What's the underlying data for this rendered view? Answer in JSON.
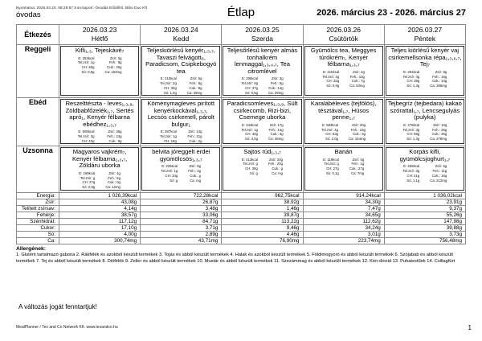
{
  "meta": {
    "print_line": "Nyomtatva: 2026.03.20. 08:29:57 Korcsoport: Óvodás Előállító: Bibo Duo Kft",
    "group": "óvodas",
    "title": "Étlap",
    "date_range": "2026. március 23 - 2026. március 27",
    "disclaimer": "A változás jogát fenntartjuk!",
    "footer": "MealPlanner / Tex and Co Network Kft. www.texandco.hu",
    "page_number": "1"
  },
  "menu": {
    "header_label": "Étkezés",
    "days": [
      {
        "date": "2026.03.23",
        "weekday": "Hétfő"
      },
      {
        "date": "2026.03.24",
        "weekday": "Kedd"
      },
      {
        "date": "2026.03.25",
        "weekday": "Szerda"
      },
      {
        "date": "2026.03.26",
        "weekday": "Csütörtök"
      },
      {
        "date": "2026.03.27",
        "weekday": "Péntek"
      }
    ],
    "meal_rows": [
      {
        "label": "Reggeli",
        "cells": [
          {
            "dish": "Kifli₁,₃, Tejeskávé₇",
            "nut_left": [
              "E: 253kcal",
              "Tel.zsír: 1g",
              "CH: 48g",
              "Só: 0,8g"
            ],
            "nut_right": [
              "Zsír: 3g",
              "Feh.: 9g",
              "Cuk.: 20g",
              "Ca: 163mg"
            ]
          },
          {
            "dish": "Teljeskiörlésű kenyér₁,₃,₇, Tavaszi felvágott₆, Paradicsom, Csipkebogyó tea",
            "nut_left": [
              "E: 210kcal",
              "Tel.zsír: 2g",
              "CH: 33g",
              "Só: 1,0g"
            ],
            "nut_right": [
              "Zsír: 5g",
              "Feh.: 8g",
              "Cuk.: 9g",
              "Ca: 28mg"
            ]
          },
          {
            "dish": "Teljesőrlésű kenyér almás tonhalkrém lenmaggal₁,₃,₄,₇, Tea citromlével",
            "nut_left": [
              "E: 206kcal",
              "Tel.zsír: 0g",
              "CH: 37g",
              "Só: 0,5g"
            ],
            "nut_right": [
              "Zsír: 3g",
              "Feh.: 6g",
              "Cuk.: 14g",
              "Ca: 29mg"
            ]
          },
          {
            "dish": "Gyümölcs tea, Meggyes túrókrém₇, Kenyér félbarna₁,₃,₇",
            "nut_left": [
              "E: 215kcal",
              "Tel.zsír: 2g",
              "CH: 32g",
              "Só: 0,9g"
            ],
            "nut_right": [
              "Zsír: 4g",
              "Feh.: 10g",
              "Cuk.: 7g",
              "Ca: 53mg"
            ]
          },
          {
            "dish": "Teljes kiörlésű kenyér vaj csirkemellsonka répa₁,₃,₆,₇, Tej₇",
            "nut_left": [
              "E: 294kcal",
              "Tel.zsír: 4g",
              "CH: 39g",
              "Só: 1,3g"
            ],
            "nut_right": [
              "Zsír: 8g",
              "Feh.: 16g",
              "Cuk.: 14g",
              "Ca: 266mg"
            ]
          }
        ]
      },
      {
        "label": "Ebéd",
        "cells": [
          {
            "dish": "Reszelttészta - leves₁,₃,₉, Zöldbabfőzelék₁,₇, Sertés apró₁, Kenyér félbarna ebédhez₁,₃,₇",
            "nut_left": [
              "E: 605kcal",
              "Tel.zsír: 3g",
              "CH: 43g",
              "Só: 2,3g"
            ],
            "nut_right": [
              "Zsír: 36g",
              "Feh.: 24g",
              "Cuk.: 9g",
              "Ca: 107mg"
            ]
          },
          {
            "dish": "Köménymagleves pirított kenyérkockával₁,₃,₇, Lecsós csirkemell, párolt bulgur₁",
            "nut_left": [
              "E: 287kcal",
              "Tel.zsír: 1g",
              "CH: 18g",
              "Só: 1,8g"
            ],
            "nut_right": [
              "Zsír: 14g",
              "Feh.: 21g",
              "Cuk.: 2g",
              "Ca: 16mg"
            ]
          },
          {
            "dish": "Paradicsomleves₁,₃,₉, Sült csirkecomb, Rizi-bizi, Csemege uborka",
            "nut_left": [
              "E: 344kcal",
              "Tel.zsír: 1g",
              "CH: 40g",
              "Só: 4,0g"
            ],
            "nut_right": [
              "Zsír: 17g",
              "Feh.: 14g",
              "Cuk.: 3g",
              "Ca: 48mg"
            ]
          },
          {
            "dish": "Karalábéleves (tejfölös), tésztával₁,₇, Húsos penne₁,₇",
            "nut_left": [
              "E: 583kcal",
              "Tel.zsír: 4g",
              "CH: 53g",
              "Só: 2,0g"
            ],
            "nut_right": [
              "Zsír: 20g",
              "Feh.: 23g",
              "Cuk.: 3g",
              "Ca: 164mg"
            ]
          },
          {
            "dish": "Tejbegríz (tejbedara) kakaó szórattal₁,₇, Lencsegulyás (pulyka)",
            "nut_left": [
              "E: 476kcal",
              "Tel.zsír: 3g",
              "CH: 69g",
              "Só: 1,3g"
            ],
            "nut_right": [
              "Zsír: 10g",
              "Feh.: 26g",
              "Cuk.: 26g",
              "Ca: 278mg"
            ]
          }
        ]
      },
      {
        "label": "Uzsonna",
        "cells": [
          {
            "dish": "Magyaros vajkrém₇, Kenyér félbarna₁,₃,₇, Zöldáru uborka",
            "nut_left": [
              "E: 169kcal",
              "Tel.zsír: g",
              "CH: 27g",
              "Só: 0,9g"
            ],
            "nut_right": [
              "Zsír: 4g",
              "Feh.: 5g",
              "Cuk.: 0g",
              "Ca: 12mg"
            ]
          },
          {
            "dish": "belvita jóreggelt erdei gyümölcsös₁,₃,₇",
            "nut_left": [
              "E: 225kcal",
              "Tel.zsír: 1g",
              "CH: 34g",
              "Só: g"
            ],
            "nut_right": [
              "Zsír: 8g",
              "Feh.: 4g",
              "Cuk.: g",
              "Ca: mg"
            ]
          },
          {
            "dish": "Sajtos rúd₁,₃,₇",
            "nut_left": [
              "E: 413kcal",
              "Tel.zsír: g",
              "CH: 36g",
              "Só: g"
            ],
            "nut_right": [
              "Zsír: 20g",
              "Feh.: 20g",
              "Cuk.: g",
              "Ca: mg"
            ]
          },
          {
            "dish": "Banán",
            "nut_left": [
              "E: 119kcal",
              "Tel.zsír: g",
              "CH: 27g",
              "Só: 0,1g"
            ],
            "nut_right": [
              "Zsír: 0g",
              "Feh.: 1g",
              "Cuk.: 27g",
              "Ca: 7mg"
            ]
          },
          {
            "dish": "Korpás kifli, gyümölcsjoghurt₁,₇",
            "nut_left": [
              "E: 266kcal",
              "Tel.zsír: 3g",
              "CH: 41g",
              "Só: 1,1g"
            ],
            "nut_right": [
              "Zsír: 6g",
              "Feh.: 11g",
              "Cuk.: 16g",
              "Ca: 212mg"
            ]
          }
        ]
      }
    ],
    "summary_rows": [
      {
        "label": "Energia:",
        "values": [
          "1 026,39kcal",
          "722,28kcal",
          "962,75kcal",
          "914,24kcal",
          "1 036,02kcal"
        ]
      },
      {
        "label": "Zsír:",
        "values": [
          "43,08g",
          "26,87g",
          "38,92g",
          "34,30g",
          "23,91g"
        ]
      },
      {
        "label": "Telített zsírsav:",
        "values": [
          "4,14g",
          "3,48g",
          "1,46g",
          "7,47g",
          "9,37g"
        ]
      },
      {
        "label": "Fehérje:",
        "values": [
          "38,57g",
          "33,06g",
          "39,87g",
          "34,65g",
          "55,26g"
        ]
      },
      {
        "label": "Szénhidrát:",
        "values": [
          "117,12g",
          "84,71g",
          "113,22g",
          "112,62g",
          "147,98g"
        ]
      },
      {
        "label": "Cukor:",
        "values": [
          "17,10g",
          "3,71g",
          "9,46g",
          "34,24g",
          "39,88g"
        ]
      },
      {
        "label": "Só:",
        "values": [
          "4,00g",
          "2,89g",
          "4,46g",
          "3,01g",
          "3,73g"
        ]
      },
      {
        "label": "Ca:",
        "values": [
          "300,74mg",
          "43,71mg",
          "76,90mg",
          "223,74mg",
          "756,48mg"
        ]
      }
    ]
  },
  "allergens": {
    "heading": "Allergének:",
    "text": "1. Glutént tartalmazó gabona 2. Rákfélék és azokból készült termékek 3. Tojás és abból készült termékek 4. Halak és azokból készült termékek 5. Földimogyoró és abból készült termékek 6. Szójabab és abból készült termékek 7. Tej és abból készült termékek 8. Diófélék 9. Zeller és abból készült termékek 10. Mustár és abból készült termékek 11. Szezámmag és abból készült termékek 12. Kén-dioxid 13. Puhatestűek 14. Csillagfürt"
  }
}
